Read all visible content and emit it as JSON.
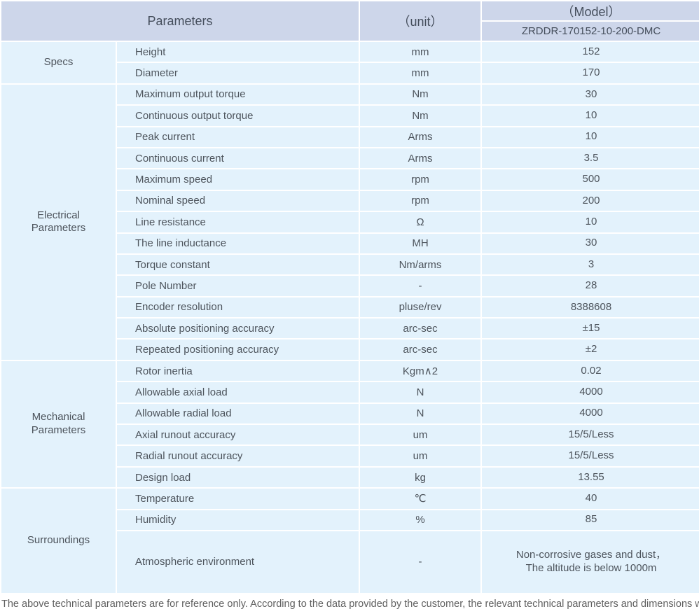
{
  "header": {
    "parameters_label": "Parameters",
    "unit_label": "（unit）",
    "model_label": "（Model）",
    "model_value": "ZRDDR-170152-10-200-DMC"
  },
  "groups": [
    {
      "label": "Specs",
      "rows": [
        {
          "param": "Height",
          "unit": "mm",
          "value": "152"
        },
        {
          "param": "Diameter",
          "unit": "mm",
          "value": "170"
        }
      ]
    },
    {
      "label": "Electrical Parameters",
      "rows": [
        {
          "param": "Maximum output torque",
          "unit": "Nm",
          "value": "30"
        },
        {
          "param": "Continuous output torque",
          "unit": "Nm",
          "value": "10"
        },
        {
          "param": "Peak current",
          "unit": "Arms",
          "value": "10"
        },
        {
          "param": "Continuous current",
          "unit": "Arms",
          "value": "3.5"
        },
        {
          "param": "Maximum speed",
          "unit": "rpm",
          "value": "500"
        },
        {
          "param": "Nominal speed",
          "unit": "rpm",
          "value": "200"
        },
        {
          "param": "Line resistance",
          "unit": "Ω",
          "value": "10"
        },
        {
          "param": "The line inductance",
          "unit": "MH",
          "value": "30"
        },
        {
          "param": "Torque constant",
          "unit": "Nm/arms",
          "value": "3"
        },
        {
          "param": "Pole Number",
          "unit": "-",
          "value": "28"
        },
        {
          "param": "Encoder resolution",
          "unit": "pluse/rev",
          "value": "8388608"
        },
        {
          "param": "Absolute positioning accuracy",
          "unit": "arc-sec",
          "value": "±15"
        },
        {
          "param": "Repeated positioning accuracy",
          "unit": "arc-sec",
          "value": "±2"
        }
      ]
    },
    {
      "label": "Mechanical Parameters",
      "rows": [
        {
          "param": "Rotor inertia",
          "unit": "Kgm∧2",
          "value": "0.02"
        },
        {
          "param": "Allowable axial load",
          "unit": "N",
          "value": "4000"
        },
        {
          "param": "Allowable radial load",
          "unit": "N",
          "value": "4000"
        },
        {
          "param": "Axial runout accuracy",
          "unit": "um",
          "value": "15/5/Less"
        },
        {
          "param": "Radial runout accuracy",
          "unit": "um",
          "value": "15/5/Less"
        },
        {
          "param": "Design load",
          "unit": "kg",
          "value": "13.55"
        }
      ]
    },
    {
      "label": "Surroundings",
      "rows": [
        {
          "param": "Temperature",
          "unit": "℃",
          "value": "40"
        },
        {
          "param": "Humidity",
          "unit": "%",
          "value": "85"
        },
        {
          "param": "Atmospheric environment",
          "unit": "-",
          "value": [
            "Non-corrosive gases and dust，",
            "The altitude is below 1000m"
          ]
        }
      ]
    }
  ],
  "footer": {
    "note": "The above technical parameters are for reference only. According to the data provided by the customer, the relevant technical parameters and dimensions will be issued."
  },
  "colors": {
    "header_bg": "#cdd6ea",
    "row_bg": "#e3f2fc",
    "text": "#4d545c",
    "footer_text": "#5f5f5f"
  }
}
